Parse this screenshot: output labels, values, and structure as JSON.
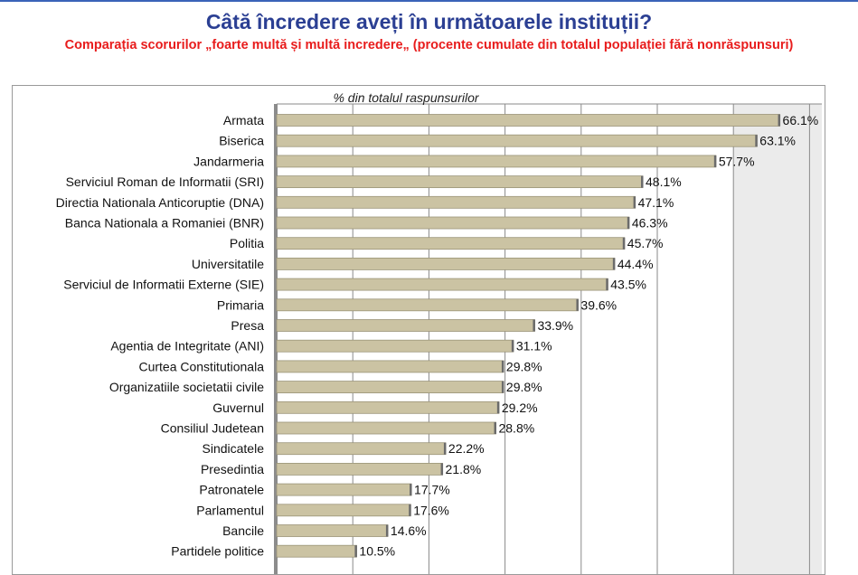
{
  "header": {
    "title": "Câtă încredere aveți în următoarele instituții?",
    "subtitle": "Comparația scorurilor „foarte multă și multă incredere„ (procente cumulate din totalul populației fără nonrăspunsuri)"
  },
  "colors": {
    "title": "#2b3f93",
    "subtitle": "#e81c1c",
    "bar": "#cbc3a3",
    "bar_border": "#9b9478",
    "bar_end": "#6b6b6b",
    "grid": "#8a8a8a",
    "plot_bg_right": "#ebebeb"
  },
  "chart_data": {
    "type": "bar",
    "orientation": "horizontal",
    "title": "Câtă încredere aveți în următoarele instituții?",
    "xlabel": "% din totalul raspunsurilor",
    "ylabel": "",
    "xlim": [
      0,
      70
    ],
    "grid": true,
    "categories": [
      "Armata",
      "Biserica",
      "Jandarmeria",
      "Serviciul Roman de Informatii (SRI)",
      "Directia Nationala Anticoruptie (DNA)",
      "Banca Nationala a Romaniei (BNR)",
      "Politia",
      "Universitatile",
      "Serviciul de Informatii Externe (SIE)",
      "Primaria",
      "Presa",
      "Agentia de Integritate (ANI)",
      "Curtea Constitutionala",
      "Organizatiile societatii civile",
      "Guvernul",
      "Consiliul Judetean",
      "Sindicatele",
      "Presedintia",
      "Patronatele",
      "Parlamentul",
      "Bancile",
      "Partidele politice"
    ],
    "values": [
      66.1,
      63.1,
      57.7,
      48.1,
      47.1,
      46.3,
      45.7,
      44.4,
      43.5,
      39.6,
      33.9,
      31.1,
      29.8,
      29.8,
      29.2,
      28.8,
      22.2,
      21.8,
      17.7,
      17.6,
      14.6,
      10.5
    ],
    "value_labels": [
      "66.1%",
      "63.1%",
      "57.7%",
      "48.1%",
      "47.1%",
      "46.3%",
      "45.7%",
      "44.4%",
      "43.5%",
      "39.6%",
      "33.9%",
      "31.1%",
      "29.8%",
      "29.8%",
      "29.2%",
      "28.8%",
      "22.2%",
      "21.8%",
      "17.7%",
      "17.6%",
      "14.6%",
      "10.5%"
    ]
  }
}
